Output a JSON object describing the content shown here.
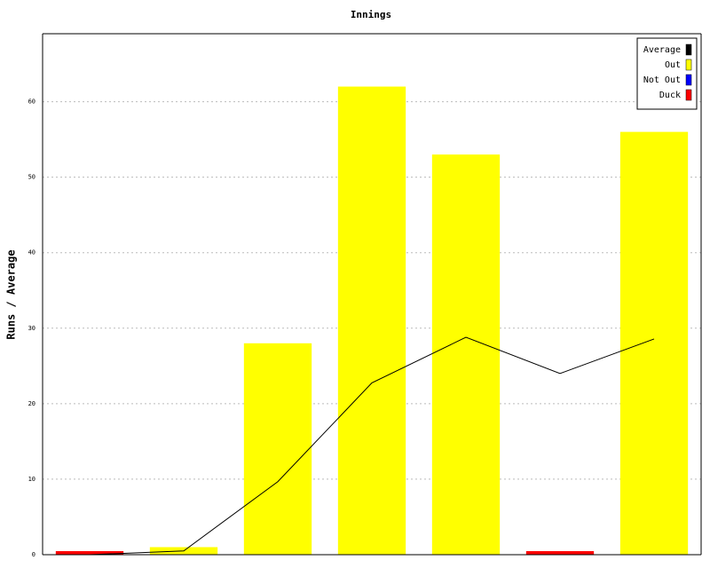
{
  "chart_data": {
    "type": "bar",
    "title": "Innings",
    "y_label": "Runs / Average",
    "categories": [
      null,
      null,
      null,
      null,
      null,
      null,
      null
    ],
    "series": [
      {
        "name": "Average",
        "color": "#000000",
        "type": "line",
        "values": [
          0,
          0.5,
          9.67,
          22.75,
          28.8,
          24,
          28.57
        ]
      },
      {
        "name": "Out",
        "color": "#ffff00",
        "type": "bar",
        "values": [
          null,
          1,
          28,
          62,
          53,
          null,
          56
        ]
      },
      {
        "name": "Not Out",
        "color": "#0000ff",
        "type": "bar",
        "values": [
          null,
          null,
          null,
          null,
          null,
          null,
          null
        ]
      },
      {
        "name": "Duck",
        "color": "#ff0000",
        "type": "bar",
        "values": [
          0,
          null,
          null,
          null,
          null,
          0,
          null
        ]
      }
    ],
    "ylim": [
      0,
      69
    ],
    "yticks": [
      0,
      10,
      20,
      30,
      40,
      50,
      60
    ],
    "grid": true,
    "legend": "top-right"
  }
}
